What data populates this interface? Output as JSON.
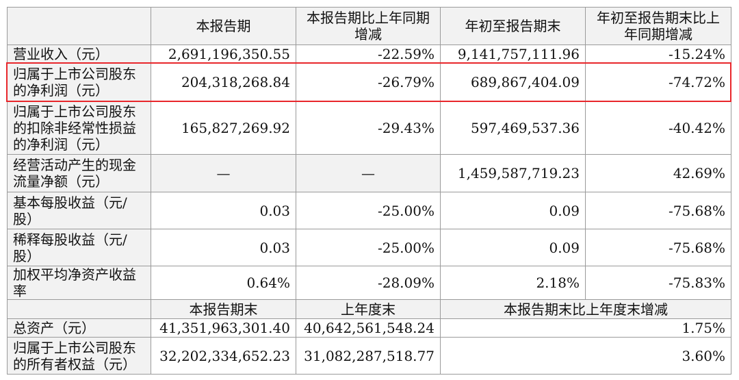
{
  "table": {
    "header": [
      "本报告期",
      "本报告期比上年同期增减",
      "年初至报告期末",
      "年初至报告期末比上年同期增减"
    ],
    "rows": [
      [
        "营业收入（元）",
        "2,691,196,350.55",
        "-22.59%",
        "9,141,757,111.96",
        "-15.24%"
      ],
      [
        "归属于上市公司股东的净利润（元）",
        "204,318,268.84",
        "-26.79%",
        "689,867,404.09",
        "-74.72%"
      ],
      [
        "归属于上市公司股东的扣除非经常性损益的净利润（元）",
        "165,827,269.92",
        "-29.43%",
        "597,469,537.36",
        "-40.42%"
      ],
      [
        "经营活动产生的现金流量净额（元）",
        "—",
        "—",
        "1,459,587,719.23",
        "42.69%"
      ],
      [
        "基本每股收益（元/股）",
        "0.03",
        "-25.00%",
        "0.09",
        "-75.68%"
      ],
      [
        "稀释每股收益（元/股）",
        "0.03",
        "-25.00%",
        "0.09",
        "-75.68%"
      ],
      [
        "加权平均净资产收益率",
        "0.64%",
        "-28.09%",
        "2.18%",
        "-75.83%"
      ]
    ],
    "subheader": [
      "本报告期末",
      "上年度末",
      "本报告期末比上年度末增减"
    ],
    "rows2": [
      [
        "总资产（元）",
        "41,351,963,301.40",
        "40,642,561,548.24",
        "1.75%"
      ],
      [
        "归属于上市公司股东的所有者权益（元）",
        "32,202,334,652.23",
        "31,082,287,518.77",
        "3.60%"
      ]
    ]
  }
}
